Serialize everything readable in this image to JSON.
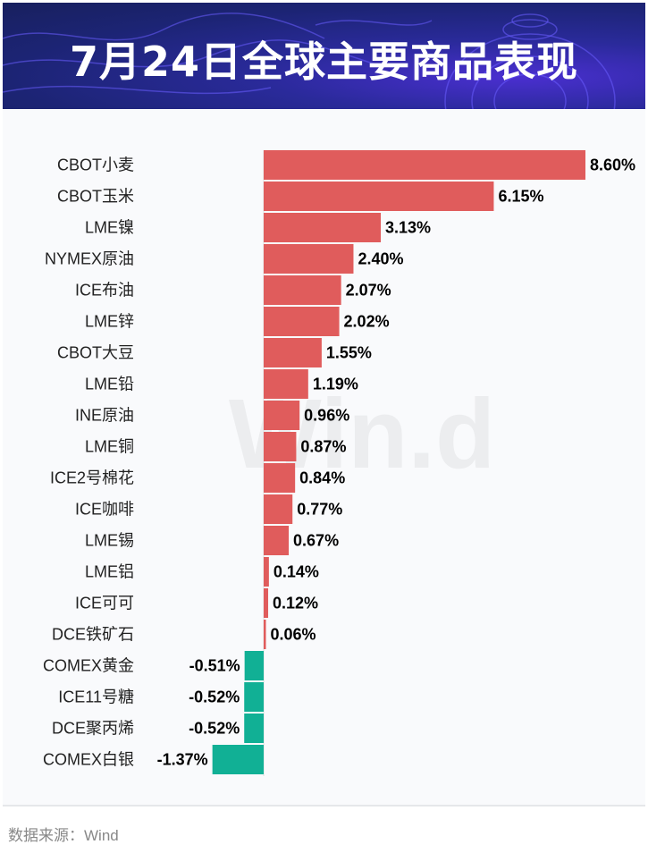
{
  "header": {
    "title": "7月24日全球主要商品表现"
  },
  "footer": {
    "source": "数据来源：Wind"
  },
  "watermark": "Wind",
  "colors": {
    "positive": "#e05c5c",
    "negative": "#11b095",
    "background": "#f9fafc"
  },
  "chart_data": {
    "type": "bar",
    "orientation": "horizontal",
    "title": "7月24日全球主要商品表现",
    "unit": "%",
    "categories": [
      "CBOT小麦",
      "CBOT玉米",
      "LME镍",
      "NYMEX原油",
      "ICE布油",
      "LME锌",
      "CBOT大豆",
      "LME铅",
      "INE原油",
      "LME铜",
      "ICE2号棉花",
      "ICE咖啡",
      "LME锡",
      "LME铝",
      "ICE可可",
      "DCE铁矿石",
      "COMEX黄金",
      "ICE11号糖",
      "DCE聚丙烯",
      "COMEX白银"
    ],
    "values": [
      8.6,
      6.15,
      3.13,
      2.4,
      2.07,
      2.02,
      1.55,
      1.19,
      0.96,
      0.87,
      0.84,
      0.77,
      0.67,
      0.14,
      0.12,
      0.06,
      -0.51,
      -0.52,
      -0.52,
      -1.37
    ],
    "labels": [
      "8.60%",
      "6.15%",
      "3.13%",
      "2.40%",
      "2.07%",
      "2.02%",
      "1.55%",
      "1.19%",
      "0.96%",
      "0.87%",
      "0.84%",
      "0.77%",
      "0.67%",
      "0.14%",
      "0.12%",
      "0.06%",
      "-0.51%",
      "-0.52%",
      "-0.52%",
      "-1.37%"
    ],
    "grid": false,
    "legend": "none"
  }
}
